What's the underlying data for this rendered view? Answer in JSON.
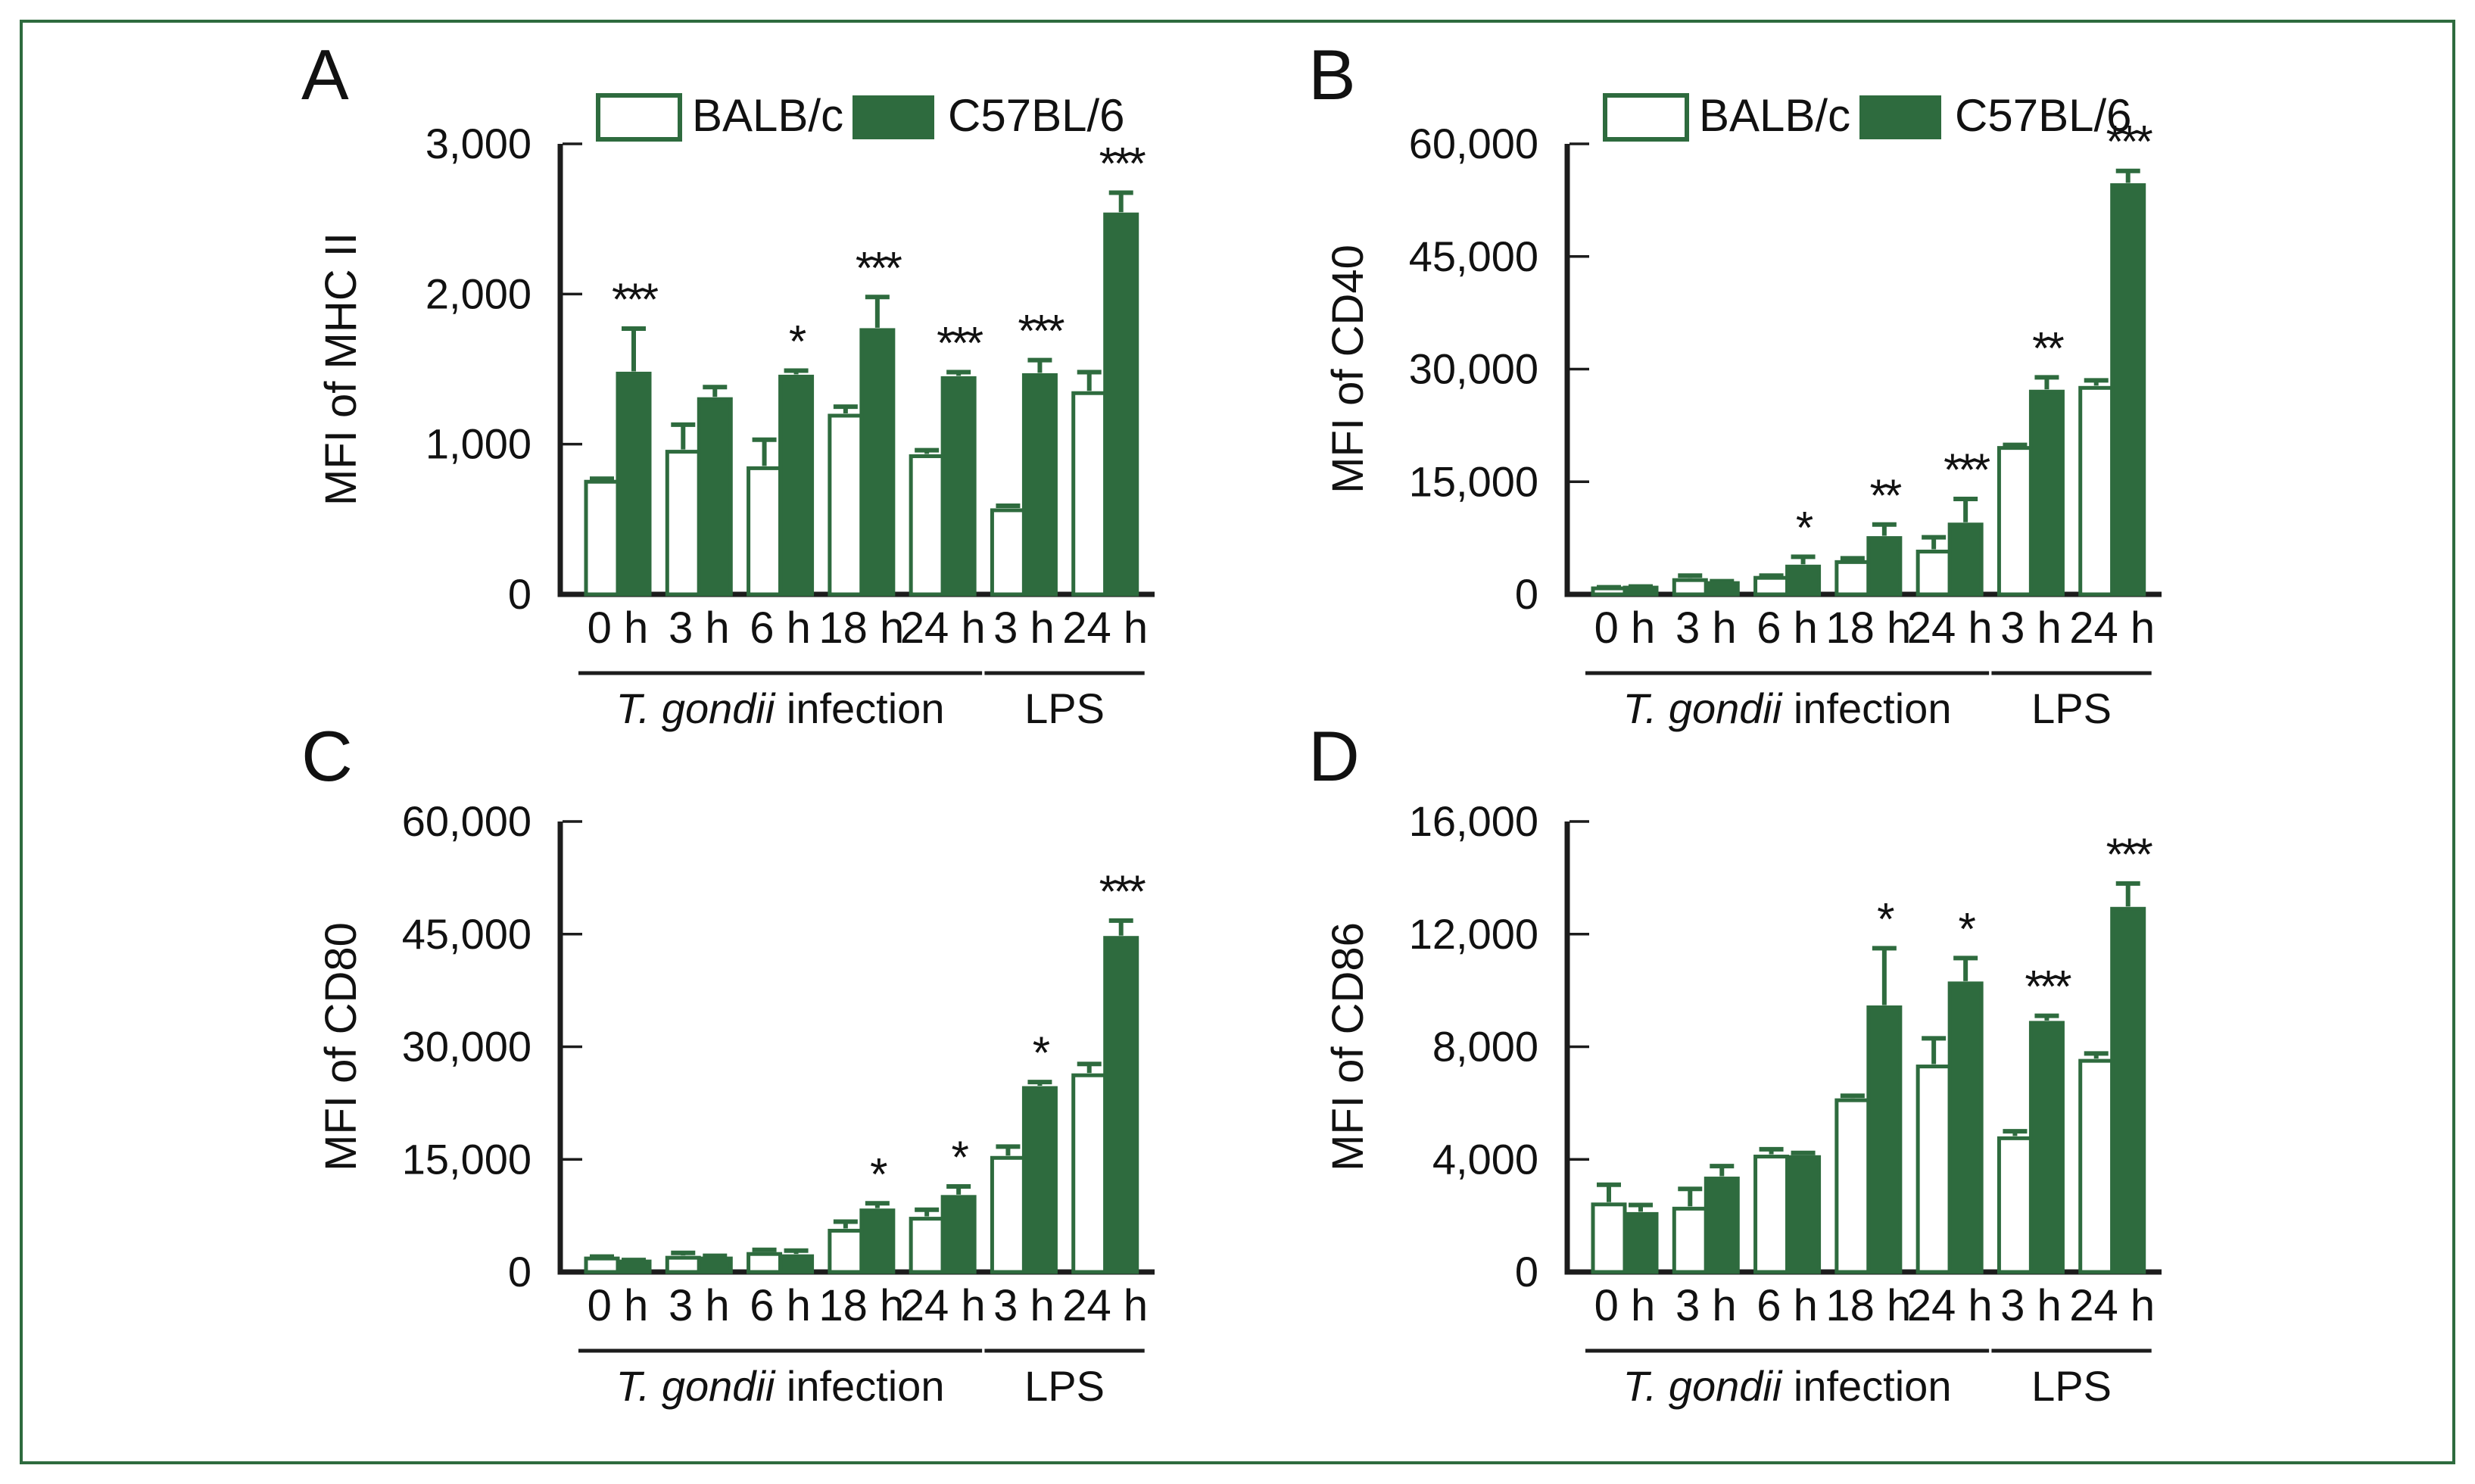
{
  "figure": {
    "kind": "four-panel scientific bar figure",
    "border_color": "#2e6b3e",
    "background": "#ffffff"
  },
  "colors": {
    "green": "#2e6b3e",
    "open_fill": "#ffffff",
    "axis": "#1c1c1c",
    "text": "#111111"
  },
  "legend": {
    "items": [
      {
        "label": "BALB/c",
        "swatch": "open"
      },
      {
        "label": "C57BL/6",
        "swatch": "filled"
      }
    ]
  },
  "chart_data": [
    {
      "type": "bar",
      "panel": "A",
      "ylabel": "MFI of MHC II",
      "xlabel": "",
      "ylim": [
        0,
        3000
      ],
      "yticks": [
        0,
        1000,
        2000,
        3000
      ],
      "ytick_labels": [
        "0",
        "1,000",
        "2,000",
        "3,000"
      ],
      "categories": [
        "0 h",
        "3 h",
        "6 h",
        "18 h",
        "24 h",
        "3 h",
        "24 h"
      ],
      "groups": [
        {
          "span": [
            0,
            4
          ],
          "parts": [
            {
              "text": "T. gondii",
              "italic": true
            },
            {
              "text": " infection",
              "italic": false
            }
          ]
        },
        {
          "span": [
            5,
            6
          ],
          "parts": [
            {
              "text": "LPS",
              "italic": false
            }
          ]
        }
      ],
      "series": [
        {
          "name": "BALB/c",
          "style": "open",
          "values": [
            750,
            950,
            840,
            1190,
            920,
            560,
            1340
          ],
          "errors": [
            20,
            180,
            190,
            60,
            40,
            30,
            140
          ]
        },
        {
          "name": "C57BL/6",
          "style": "filled",
          "values": [
            1470,
            1300,
            1450,
            1760,
            1440,
            1460,
            2530
          ],
          "errors": [
            300,
            80,
            40,
            220,
            40,
            100,
            145
          ]
        }
      ],
      "significance": [
        "***",
        "",
        "*",
        "***",
        "***",
        "***",
        "***"
      ],
      "show_legend": true,
      "legend_position": "top",
      "grid": false
    },
    {
      "type": "bar",
      "panel": "B",
      "ylabel": "MFI of CD40",
      "xlabel": "",
      "ylim": [
        0,
        60000
      ],
      "yticks": [
        0,
        15000,
        30000,
        45000,
        60000
      ],
      "ytick_labels": [
        "0",
        "15,000",
        "30,000",
        "45,000",
        "60,000"
      ],
      "categories": [
        "0 h",
        "3 h",
        "6 h",
        "18 h",
        "24 h",
        "3 h",
        "24 h"
      ],
      "groups": [
        {
          "span": [
            0,
            4
          ],
          "parts": [
            {
              "text": "T. gondii",
              "italic": true
            },
            {
              "text": " infection",
              "italic": false
            }
          ]
        },
        {
          "span": [
            5,
            6
          ],
          "parts": [
            {
              "text": "LPS",
              "italic": false
            }
          ]
        }
      ],
      "series": [
        {
          "name": "BALB/c",
          "style": "open",
          "values": [
            800,
            1900,
            2200,
            4300,
            5700,
            19500,
            27500
          ],
          "errors": [
            150,
            600,
            300,
            500,
            1900,
            400,
            1000
          ]
        },
        {
          "name": "C57BL/6",
          "style": "filled",
          "values": [
            900,
            1500,
            3700,
            7500,
            9300,
            27000,
            54500
          ],
          "errors": [
            150,
            250,
            1300,
            1800,
            3400,
            1900,
            1900
          ]
        }
      ],
      "significance": [
        "",
        "",
        "*",
        "**",
        "***",
        "**",
        "***"
      ],
      "show_legend": true,
      "legend_position": "top",
      "grid": false
    },
    {
      "type": "bar",
      "panel": "C",
      "ylabel": "MFI of CD80",
      "xlabel": "",
      "ylim": [
        0,
        60000
      ],
      "yticks": [
        0,
        15000,
        30000,
        45000,
        60000
      ],
      "ytick_labels": [
        "0",
        "15,000",
        "30,000",
        "45,000",
        "60,000"
      ],
      "categories": [
        "0 h",
        "3 h",
        "6 h",
        "18 h",
        "24 h",
        "3 h",
        "24 h"
      ],
      "groups": [
        {
          "span": [
            0,
            4
          ],
          "parts": [
            {
              "text": "T. gondii",
              "italic": true
            },
            {
              "text": " infection",
              "italic": false
            }
          ]
        },
        {
          "span": [
            5,
            6
          ],
          "parts": [
            {
              "text": "LPS",
              "italic": false
            }
          ]
        }
      ],
      "series": [
        {
          "name": "BALB/c",
          "style": "open",
          "values": [
            1800,
            1900,
            2400,
            5500,
            7100,
            15200,
            26200
          ],
          "errors": [
            250,
            650,
            550,
            1200,
            1200,
            1500,
            1500
          ]
        },
        {
          "name": "C57BL/6",
          "style": "filled",
          "values": [
            1400,
            1800,
            2100,
            8200,
            10000,
            24500,
            44500
          ],
          "errors": [
            200,
            350,
            750,
            950,
            1400,
            800,
            2300
          ]
        }
      ],
      "significance": [
        "",
        "",
        "",
        "*",
        "*",
        "*",
        "***"
      ],
      "show_legend": false,
      "legend_position": "none",
      "grid": false
    },
    {
      "type": "bar",
      "panel": "D",
      "ylabel": "MFI of CD86",
      "xlabel": "",
      "ylim": [
        0,
        16000
      ],
      "yticks": [
        0,
        4000,
        8000,
        12000,
        16000
      ],
      "ytick_labels": [
        "0",
        "4,000",
        "8,000",
        "12,000",
        "16,000"
      ],
      "categories": [
        "0 h",
        "3 h",
        "6 h",
        "18 h",
        "24 h",
        "3 h",
        "24 h"
      ],
      "groups": [
        {
          "span": [
            0,
            4
          ],
          "parts": [
            {
              "text": "T. gondii",
              "italic": true
            },
            {
              "text": " infection",
              "italic": false
            }
          ]
        },
        {
          "span": [
            5,
            6
          ],
          "parts": [
            {
              "text": "LPS",
              "italic": false
            }
          ]
        }
      ],
      "series": [
        {
          "name": "BALB/c",
          "style": "open",
          "values": [
            2400,
            2250,
            4100,
            6100,
            7300,
            4750,
            7500
          ],
          "errors": [
            700,
            700,
            260,
            160,
            1000,
            250,
            260
          ]
        },
        {
          "name": "C57BL/6",
          "style": "filled",
          "values": [
            2060,
            3320,
            4080,
            9400,
            10250,
            8850,
            12900
          ],
          "errors": [
            320,
            440,
            150,
            2100,
            900,
            250,
            900
          ]
        }
      ],
      "significance": [
        "",
        "",
        "",
        "*",
        "*",
        "***",
        "***"
      ],
      "show_legend": false,
      "legend_position": "none",
      "grid": false
    }
  ]
}
